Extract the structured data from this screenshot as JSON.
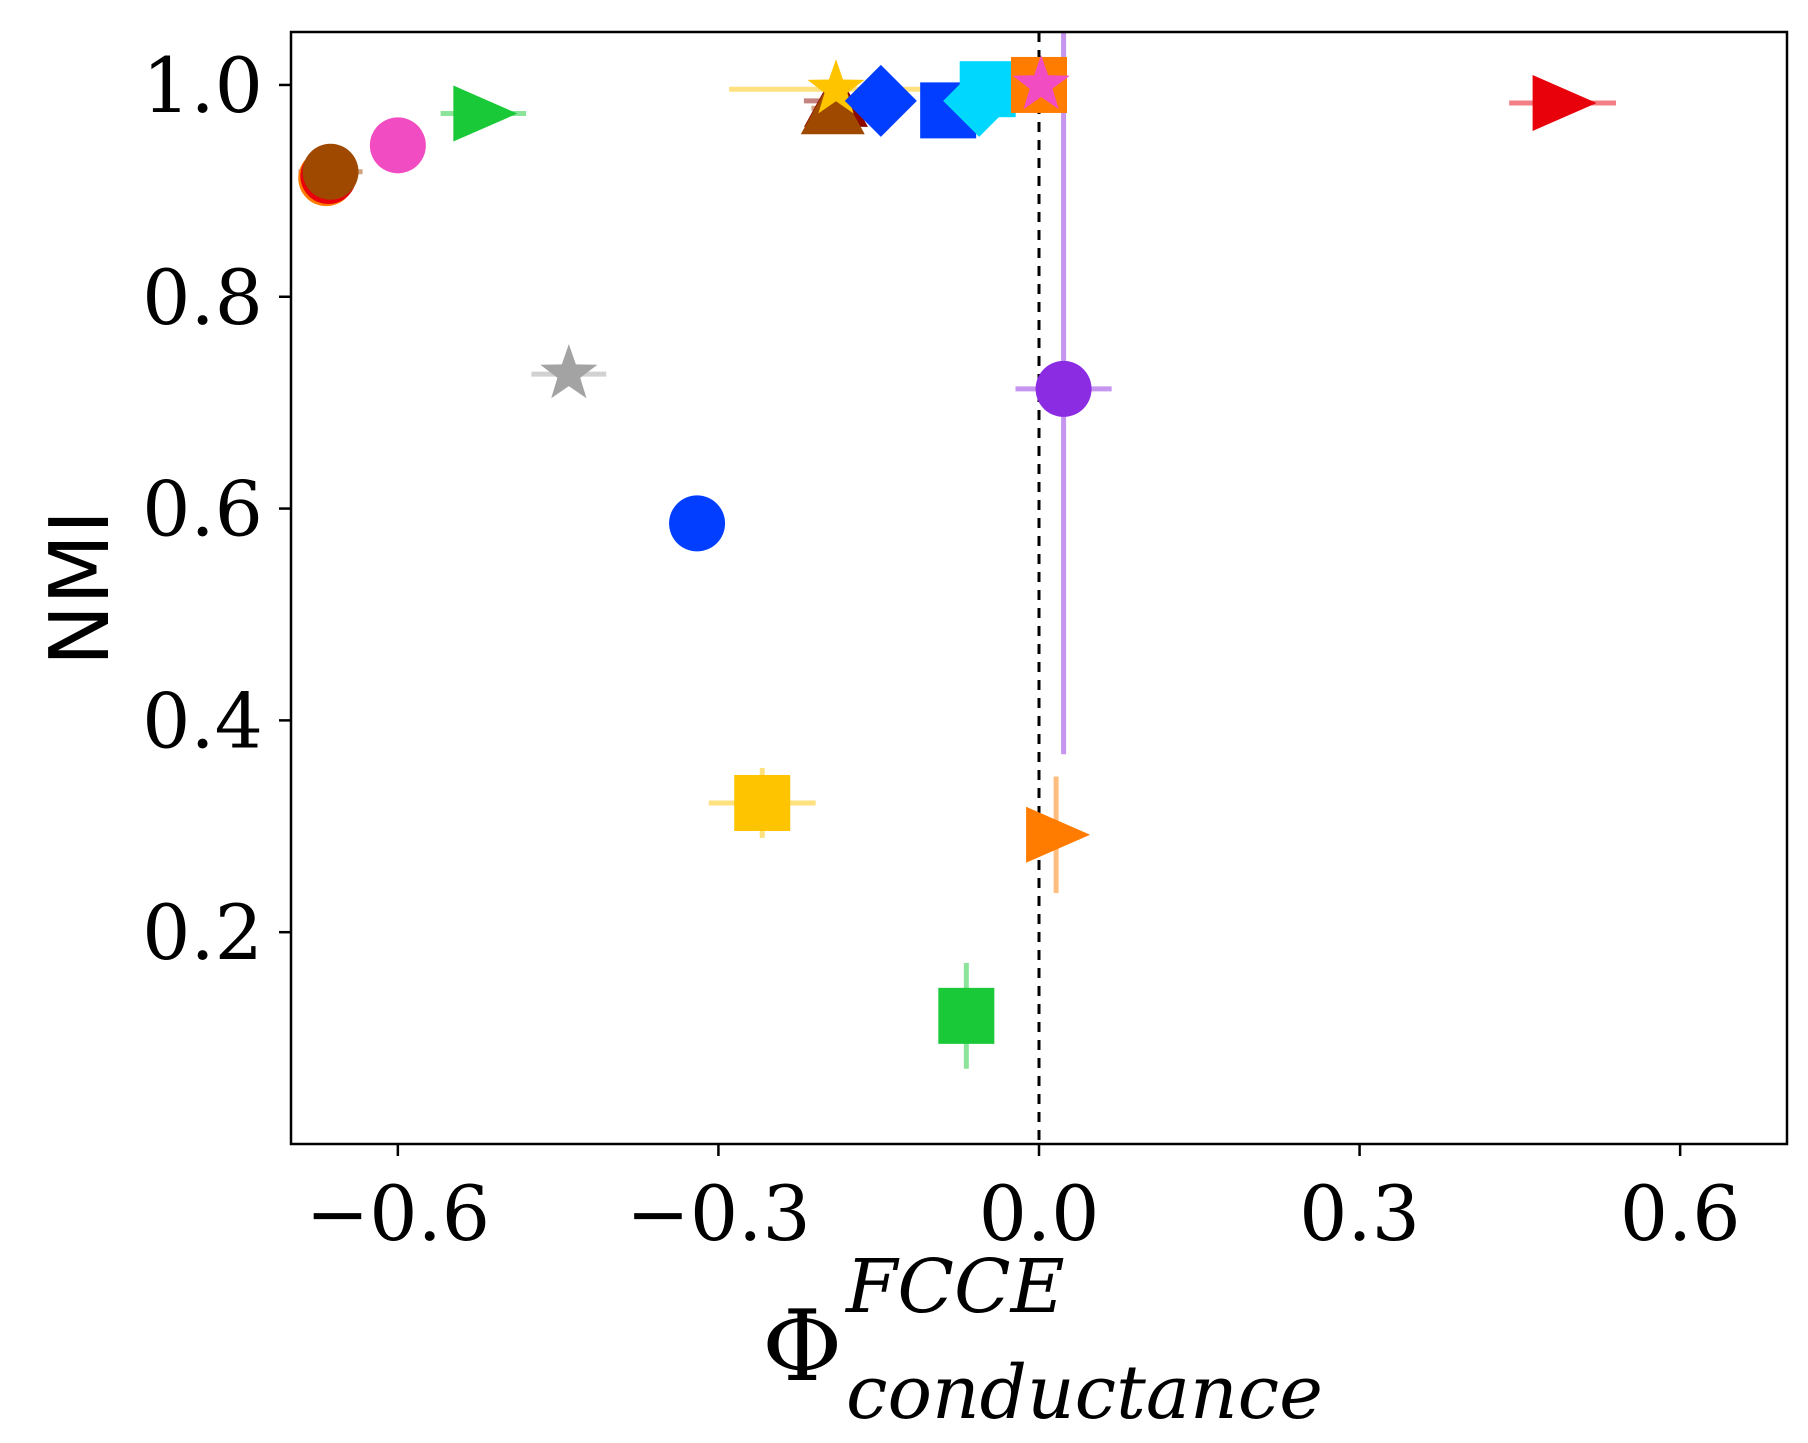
{
  "chart_data": {
    "type": "scatter",
    "title": "",
    "xlabel": {
      "base": "Φ",
      "superscript": "FCCE",
      "subscript": "conductance"
    },
    "ylabel": "NMI",
    "xlim": [
      -0.7,
      0.7
    ],
    "ylim": [
      0.0,
      1.05
    ],
    "xticks": [
      -0.6,
      -0.3,
      0.0,
      0.3,
      0.6
    ],
    "xtick_labels": [
      "−0.6",
      "−0.3",
      "0.0",
      "0.3",
      "0.6"
    ],
    "yticks": [
      0.2,
      0.4,
      0.6,
      0.8,
      1.0
    ],
    "ytick_labels": [
      "0.2",
      "0.4",
      "0.6",
      "0.8",
      "1.0"
    ],
    "reference_line": {
      "x": 0.0,
      "style": "dashed",
      "color": "#000000"
    },
    "points": [
      {
        "name": "red-triangle-right",
        "x": 0.49,
        "y": 0.983,
        "xerr": 0.05,
        "yerr": 0,
        "marker": "triangle-right",
        "color": "#e8000b"
      },
      {
        "name": "green-triangle-right",
        "x": -0.52,
        "y": 0.973,
        "xerr": 0.04,
        "yerr": 0,
        "marker": "triangle-right",
        "color": "#1ac938"
      },
      {
        "name": "magenta-circle",
        "x": -0.6,
        "y": 0.943,
        "xerr": 0.025,
        "yerr": 0,
        "marker": "circle",
        "color": "#f14cc1"
      },
      {
        "name": "orange-circle",
        "x": -0.667,
        "y": 0.912,
        "xerr": 0.02,
        "yerr": 0,
        "marker": "circle",
        "color": "#ff7c00"
      },
      {
        "name": "red-circle",
        "x": -0.665,
        "y": 0.914,
        "xerr": 0.01,
        "yerr": 0,
        "marker": "circle",
        "color": "#e8000b"
      },
      {
        "name": "brown-circle",
        "x": -0.663,
        "y": 0.918,
        "xerr": 0.03,
        "yerr": 0,
        "marker": "circle",
        "color": "#9f4800"
      },
      {
        "name": "gray-star",
        "x": -0.44,
        "y": 0.727,
        "xerr": 0.035,
        "yerr": 0,
        "marker": "star",
        "color": "#a3a3a3"
      },
      {
        "name": "blue-circle",
        "x": -0.32,
        "y": 0.586,
        "xerr": 0,
        "yerr": 0,
        "marker": "circle",
        "color": "#023eff"
      },
      {
        "name": "purple-circle",
        "x": 0.023,
        "y": 0.713,
        "xerr": 0.045,
        "yerr": 0.345,
        "marker": "circle",
        "color": "#8b2be2"
      },
      {
        "name": "yellow-square",
        "x": -0.259,
        "y": 0.322,
        "xerr": 0.05,
        "yerr": 0.033,
        "marker": "square",
        "color": "#ffc400"
      },
      {
        "name": "orange-triangle-right",
        "x": 0.016,
        "y": 0.292,
        "xerr": 0,
        "yerr": 0.055,
        "marker": "triangle-right",
        "color": "#ff7c00"
      },
      {
        "name": "green-square",
        "x": -0.068,
        "y": 0.121,
        "xerr": 0,
        "yerr": 0.05,
        "marker": "square",
        "color": "#1ac938"
      },
      {
        "name": "darkred-triangle-up",
        "x": -0.19,
        "y": 0.985,
        "xerr": 0.03,
        "yerr": 0,
        "marker": "triangle-up",
        "color": "#8c0800"
      },
      {
        "name": "brown-triangle-up",
        "x": -0.193,
        "y": 0.978,
        "xerr": 0.02,
        "yerr": 0,
        "marker": "triangle-up",
        "color": "#9f4800"
      },
      {
        "name": "gold-star",
        "x": -0.19,
        "y": 0.996,
        "xerr": 0.1,
        "yerr": 0,
        "marker": "star",
        "color": "#ffc400"
      },
      {
        "name": "blue-diamond",
        "x": -0.148,
        "y": 0.985,
        "xerr": 0.02,
        "yerr": 0,
        "marker": "diamond",
        "color": "#023eff"
      },
      {
        "name": "blue-square",
        "x": -0.085,
        "y": 0.976,
        "xerr": 0.02,
        "yerr": 0,
        "marker": "square",
        "color": "#023eff"
      },
      {
        "name": "cyan-square",
        "x": -0.048,
        "y": 0.996,
        "xerr": 0.01,
        "yerr": 0,
        "marker": "square",
        "color": "#00d7ff"
      },
      {
        "name": "cyan-diamond",
        "x": -0.056,
        "y": 0.985,
        "xerr": 0.01,
        "yerr": 0,
        "marker": "diamond",
        "color": "#00d7ff"
      },
      {
        "name": "orange-square",
        "x": 0.0,
        "y": 1.0,
        "xerr": 0.01,
        "yerr": 0,
        "marker": "square",
        "color": "#ff7c00"
      },
      {
        "name": "pink-star",
        "x": 0.002,
        "y": 1.0,
        "xerr": 0.01,
        "yerr": 0,
        "marker": "star",
        "color": "#f14cc1"
      }
    ]
  }
}
